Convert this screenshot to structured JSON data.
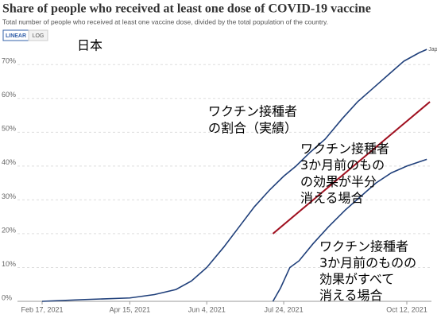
{
  "chart_data": {
    "type": "line",
    "title": "Share of people who received at least one dose of COVID-19 vaccine",
    "subtitle": "Total number of people who received at least one vaccine dose, divided by the total population of the country.",
    "buttons": [
      "LINEAR",
      "LOG"
    ],
    "country_label": "日本",
    "xlim": [
      "2021-02-01",
      "2021-10-28"
    ],
    "xticks": [
      {
        "value": "2021-02-17",
        "label": "Feb 17, 2021"
      },
      {
        "value": "2021-04-15",
        "label": "Apr 15, 2021"
      },
      {
        "value": "2021-06-04",
        "label": "Jun 4, 2021"
      },
      {
        "value": "2021-07-24",
        "label": "Jul 24, 2021"
      },
      {
        "value": "2021-10-12",
        "label": "Oct 12, 2021"
      }
    ],
    "ylim": [
      0,
      75
    ],
    "yticks": [
      {
        "value": 0,
        "label": "0%"
      },
      {
        "value": 10,
        "label": "10%"
      },
      {
        "value": 20,
        "label": "20%"
      },
      {
        "value": 30,
        "label": "30%"
      },
      {
        "value": 40,
        "label": "40%"
      },
      {
        "value": 50,
        "label": "50%"
      },
      {
        "value": 60,
        "label": "60%"
      },
      {
        "value": 70,
        "label": "70%"
      }
    ],
    "grid": true,
    "series": [
      {
        "name": "Japan",
        "color": "#1f3f7a",
        "x": [
          "2021-02-17",
          "2021-03-15",
          "2021-04-15",
          "2021-05-01",
          "2021-05-15",
          "2021-05-25",
          "2021-06-04",
          "2021-06-15",
          "2021-06-25",
          "2021-07-05",
          "2021-07-15",
          "2021-07-24",
          "2021-08-01",
          "2021-08-10",
          "2021-08-20",
          "2021-08-31",
          "2021-09-10",
          "2021-09-20",
          "2021-09-30",
          "2021-10-10",
          "2021-10-20",
          "2021-10-25"
        ],
        "values": [
          0,
          0.5,
          1,
          2,
          3.5,
          6,
          10,
          16,
          22,
          28,
          33,
          37,
          40,
          44,
          48,
          54,
          59,
          63,
          67,
          71,
          73.5,
          74.5
        ]
      },
      {
        "color": "#a01020",
        "x": [
          "2021-07-17",
          "2021-10-27"
        ],
        "values": [
          20,
          59
        ]
      },
      {
        "color": "#1f3f7a",
        "x": [
          "2021-07-17",
          "2021-07-22",
          "2021-07-28",
          "2021-08-03",
          "2021-08-12",
          "2021-08-22",
          "2021-09-02",
          "2021-09-12",
          "2021-09-22",
          "2021-10-02",
          "2021-10-12",
          "2021-10-25"
        ],
        "values": [
          0,
          4,
          10,
          12,
          17,
          22,
          27,
          31,
          35,
          38,
          40,
          42
        ]
      }
    ],
    "annotations": [
      {
        "lines": [
          "ワクチン接種者",
          "の割合（実績）"
        ]
      },
      {
        "lines": [
          "ワクチン接種者",
          "3か月前のもの",
          "の効果が半分",
          "消える場合"
        ]
      },
      {
        "lines": [
          "ワクチン接種者",
          "3か月前のものの",
          "効果がすべて",
          "消える場合"
        ]
      }
    ]
  }
}
